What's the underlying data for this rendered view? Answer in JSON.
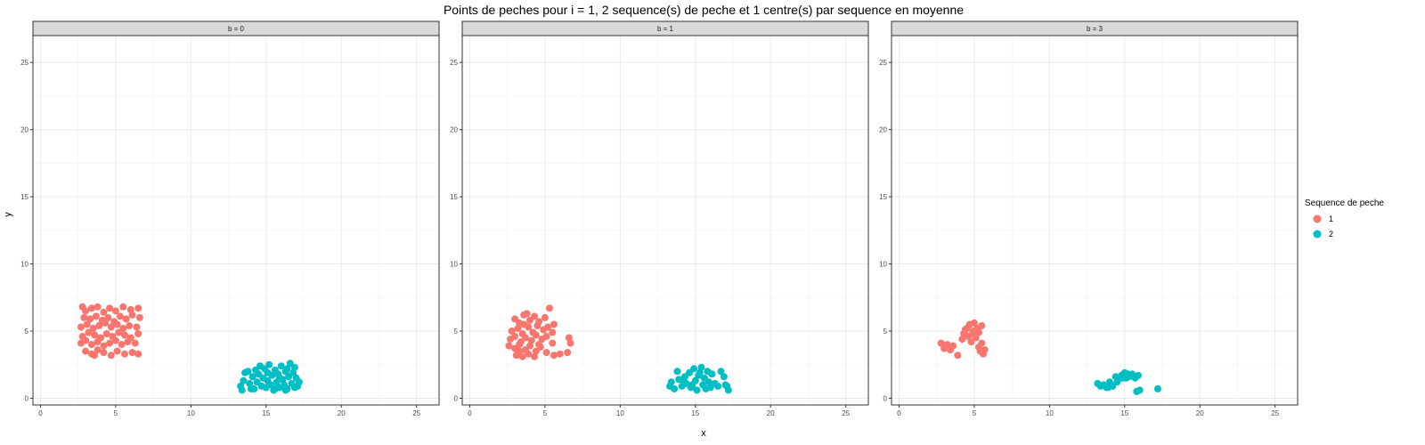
{
  "chart_data": {
    "type": "scatter",
    "title": "Points de peches pour i = 1, 2 sequence(s) de peche et 1 centre(s) par sequence en moyenne",
    "xlabel": "x",
    "ylabel": "y",
    "xlim": [
      -0.5,
      26.5
    ],
    "ylim": [
      -0.5,
      27
    ],
    "xticks": [
      0,
      5,
      10,
      15,
      20,
      25
    ],
    "yticks": [
      0,
      5,
      10,
      15,
      20,
      25
    ],
    "grid": true,
    "legend": {
      "title": "Sequence de peche",
      "position": "right",
      "items": [
        {
          "label": "1",
          "color": "#F8766D"
        },
        {
          "label": "2",
          "color": "#00BFC4"
        }
      ]
    },
    "panels": [
      {
        "label": "b = 0",
        "series": [
          {
            "name": "1",
            "color": "#F8766D",
            "points": [
              [
                2.8,
                6.8
              ],
              [
                3.0,
                6.5
              ],
              [
                3.4,
                6.7
              ],
              [
                3.8,
                6.8
              ],
              [
                4.2,
                6.4
              ],
              [
                4.6,
                6.7
              ],
              [
                5.0,
                6.5
              ],
              [
                5.5,
                6.8
              ],
              [
                6.0,
                6.6
              ],
              [
                6.5,
                6.7
              ],
              [
                2.9,
                6.0
              ],
              [
                3.3,
                5.9
              ],
              [
                3.7,
                6.1
              ],
              [
                4.1,
                5.8
              ],
              [
                4.5,
                6.0
              ],
              [
                4.9,
                5.7
              ],
              [
                5.3,
                6.1
              ],
              [
                5.7,
                5.9
              ],
              [
                6.1,
                6.2
              ],
              [
                6.6,
                6.0
              ],
              [
                2.7,
                5.3
              ],
              [
                3.1,
                5.5
              ],
              [
                3.5,
                5.2
              ],
              [
                3.9,
                5.4
              ],
              [
                4.3,
                5.6
              ],
              [
                4.7,
                5.3
              ],
              [
                5.1,
                5.5
              ],
              [
                5.5,
                5.2
              ],
              [
                5.9,
                5.4
              ],
              [
                6.4,
                5.3
              ],
              [
                2.8,
                4.6
              ],
              [
                3.2,
                4.9
              ],
              [
                3.6,
                4.7
              ],
              [
                4.0,
                4.5
              ],
              [
                4.4,
                4.8
              ],
              [
                4.8,
                4.6
              ],
              [
                5.2,
                4.9
              ],
              [
                5.6,
                4.7
              ],
              [
                6.0,
                4.5
              ],
              [
                6.5,
                4.8
              ],
              [
                2.7,
                4.1
              ],
              [
                3.0,
                4.3
              ],
              [
                3.4,
                4.0
              ],
              [
                3.8,
                4.2
              ],
              [
                4.2,
                3.9
              ],
              [
                4.6,
                4.1
              ],
              [
                5.0,
                4.3
              ],
              [
                5.4,
                4.0
              ],
              [
                5.8,
                4.2
              ],
              [
                6.3,
                4.1
              ],
              [
                3.0,
                3.5
              ],
              [
                3.4,
                3.3
              ],
              [
                3.8,
                3.6
              ],
              [
                4.2,
                3.4
              ],
              [
                4.7,
                3.2
              ],
              [
                5.1,
                3.5
              ],
              [
                5.6,
                3.3
              ],
              [
                6.1,
                3.4
              ],
              [
                6.5,
                3.3
              ],
              [
                3.6,
                3.2
              ]
            ]
          },
          {
            "name": "2",
            "color": "#00BFC4",
            "points": [
              [
                13.3,
                0.9
              ],
              [
                13.5,
                1.3
              ],
              [
                13.6,
                1.9
              ],
              [
                13.8,
                2.0
              ],
              [
                13.9,
                1.1
              ],
              [
                14.1,
                1.6
              ],
              [
                14.2,
                0.7
              ],
              [
                14.4,
                1.2
              ],
              [
                14.5,
                1.8
              ],
              [
                14.7,
                0.9
              ],
              [
                14.8,
                1.5
              ],
              [
                14.9,
                2.2
              ],
              [
                15.0,
                0.8
              ],
              [
                15.1,
                1.3
              ],
              [
                15.2,
                2.5
              ],
              [
                15.3,
                1.0
              ],
              [
                15.4,
                1.7
              ],
              [
                15.5,
                0.6
              ],
              [
                15.6,
                2.1
              ],
              [
                15.7,
                1.2
              ],
              [
                15.8,
                1.8
              ],
              [
                15.9,
                0.8
              ],
              [
                16.0,
                2.4
              ],
              [
                16.1,
                1.4
              ],
              [
                16.2,
                1.0
              ],
              [
                16.3,
                2.0
              ],
              [
                16.4,
                0.7
              ],
              [
                16.5,
                1.6
              ],
              [
                16.6,
                2.6
              ],
              [
                16.7,
                1.1
              ],
              [
                16.8,
                1.9
              ],
              [
                16.9,
                2.3
              ],
              [
                17.0,
                1.5
              ],
              [
                17.1,
                0.9
              ],
              [
                17.2,
                1.2
              ],
              [
                13.4,
                0.6
              ],
              [
                14.0,
                0.7
              ],
              [
                15.6,
                0.7
              ],
              [
                16.3,
                0.6
              ],
              [
                14.6,
                2.4
              ],
              [
                15.9,
                1.5
              ],
              [
                14.3,
                2.1
              ],
              [
                16.9,
                0.8
              ],
              [
                15.1,
                1.9
              ],
              [
                16.4,
                2.2
              ]
            ]
          }
        ]
      },
      {
        "label": "b = 1",
        "series": [
          {
            "name": "1",
            "color": "#F8766D",
            "points": [
              [
                3.0,
                5.9
              ],
              [
                3.3,
                5.6
              ],
              [
                3.6,
                6.2
              ],
              [
                4.0,
                5.8
              ],
              [
                4.3,
                6.1
              ],
              [
                4.6,
                5.7
              ],
              [
                5.0,
                6.0
              ],
              [
                5.3,
                6.7
              ],
              [
                5.6,
                5.5
              ],
              [
                3.8,
                6.3
              ],
              [
                2.8,
                5.0
              ],
              [
                3.2,
                5.2
              ],
              [
                3.5,
                4.8
              ],
              [
                3.9,
                5.3
              ],
              [
                4.2,
                4.9
              ],
              [
                4.5,
                5.4
              ],
              [
                4.9,
                5.1
              ],
              [
                5.2,
                5.3
              ],
              [
                5.5,
                4.9
              ],
              [
                3.6,
                5.5
              ],
              [
                2.7,
                4.4
              ],
              [
                3.0,
                4.6
              ],
              [
                3.4,
                4.2
              ],
              [
                3.7,
                4.5
              ],
              [
                4.1,
                4.3
              ],
              [
                4.4,
                4.7
              ],
              [
                4.8,
                4.4
              ],
              [
                5.1,
                4.6
              ],
              [
                5.5,
                4.1
              ],
              [
                6.6,
                4.5
              ],
              [
                2.6,
                3.9
              ],
              [
                3.0,
                3.7
              ],
              [
                3.3,
                4.0
              ],
              [
                3.7,
                3.6
              ],
              [
                4.0,
                3.9
              ],
              [
                4.4,
                3.5
              ],
              [
                4.7,
                3.8
              ],
              [
                5.1,
                3.4
              ],
              [
                5.6,
                3.2
              ],
              [
                6.0,
                3.3
              ],
              [
                3.1,
                3.2
              ],
              [
                3.5,
                3.1
              ],
              [
                3.9,
                3.3
              ],
              [
                4.3,
                3.1
              ],
              [
                6.5,
                3.4
              ],
              [
                6.7,
                4.1
              ],
              [
                4.6,
                4.0
              ],
              [
                3.3,
                3.5
              ]
            ]
          },
          {
            "name": "2",
            "color": "#00BFC4",
            "points": [
              [
                13.3,
                0.9
              ],
              [
                13.4,
                1.2
              ],
              [
                13.6,
                0.7
              ],
              [
                13.8,
                2.0
              ],
              [
                13.9,
                1.4
              ],
              [
                14.1,
                0.9
              ],
              [
                14.3,
                1.6
              ],
              [
                14.4,
                1.1
              ],
              [
                14.6,
                1.9
              ],
              [
                14.7,
                0.8
              ],
              [
                14.9,
                2.2
              ],
              [
                15.0,
                1.3
              ],
              [
                15.1,
                0.6
              ],
              [
                15.2,
                1.7
              ],
              [
                15.4,
                2.3
              ],
              [
                15.5,
                1.0
              ],
              [
                15.6,
                1.5
              ],
              [
                15.7,
                0.7
              ],
              [
                15.8,
                2.0
              ],
              [
                15.9,
                1.2
              ],
              [
                16.0,
                0.8
              ],
              [
                16.1,
                1.8
              ],
              [
                16.3,
                1.1
              ],
              [
                16.5,
                0.9
              ],
              [
                16.7,
                2.0
              ],
              [
                16.9,
                1.6
              ],
              [
                17.0,
                1.0
              ],
              [
                17.2,
                0.6
              ],
              [
                17.1,
                0.9
              ],
              [
                14.2,
                1.3
              ],
              [
                15.3,
                1.9
              ],
              [
                14.8,
                1.0
              ]
            ]
          }
        ]
      },
      {
        "label": "b = 3",
        "series": [
          {
            "name": "1",
            "color": "#F8766D",
            "points": [
              [
                2.8,
                4.1
              ],
              [
                3.0,
                3.7
              ],
              [
                3.2,
                4.0
              ],
              [
                3.4,
                3.6
              ],
              [
                3.6,
                3.9
              ],
              [
                3.9,
                3.2
              ],
              [
                4.2,
                4.4
              ],
              [
                4.3,
                4.8
              ],
              [
                4.5,
                5.2
              ],
              [
                4.6,
                4.6
              ],
              [
                4.7,
                5.5
              ],
              [
                4.8,
                4.2
              ],
              [
                4.9,
                5.0
              ],
              [
                5.0,
                5.6
              ],
              [
                5.1,
                4.5
              ],
              [
                5.2,
                5.2
              ],
              [
                5.3,
                3.8
              ],
              [
                5.4,
                3.5
              ],
              [
                5.5,
                4.1
              ],
              [
                5.6,
                3.3
              ],
              [
                5.5,
                5.4
              ],
              [
                4.4,
                5.1
              ],
              [
                5.7,
                3.6
              ],
              [
                4.9,
                4.8
              ],
              [
                3.1,
                3.8
              ],
              [
                5.3,
                4.9
              ]
            ]
          },
          {
            "name": "2",
            "color": "#00BFC4",
            "points": [
              [
                13.2,
                1.1
              ],
              [
                13.4,
                0.9
              ],
              [
                13.6,
                1.0
              ],
              [
                13.8,
                0.8
              ],
              [
                14.0,
                1.2
              ],
              [
                14.2,
                0.9
              ],
              [
                14.4,
                1.6
              ],
              [
                14.6,
                1.4
              ],
              [
                14.8,
                1.7
              ],
              [
                15.0,
                1.9
              ],
              [
                15.1,
                1.5
              ],
              [
                15.3,
                1.6
              ],
              [
                15.5,
                1.8
              ],
              [
                15.7,
                1.5
              ],
              [
                15.9,
                1.7
              ],
              [
                16.0,
                0.6
              ],
              [
                15.8,
                0.5
              ],
              [
                17.2,
                0.7
              ],
              [
                14.9,
                1.5
              ],
              [
                14.5,
                1.2
              ],
              [
                13.9,
                0.8
              ],
              [
                15.2,
                1.8
              ]
            ]
          }
        ]
      }
    ]
  }
}
